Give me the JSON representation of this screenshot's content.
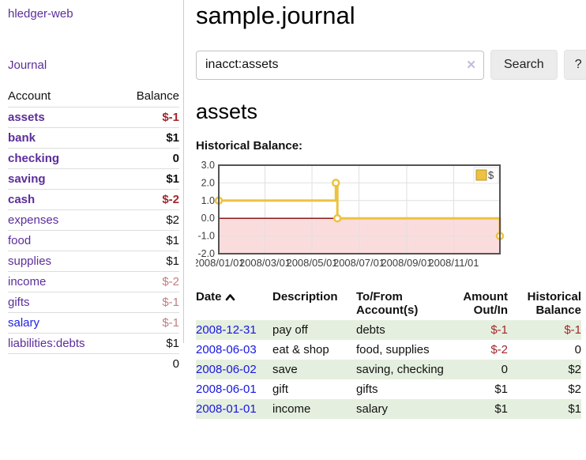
{
  "colors": {
    "link_purple": "#5c2d9b",
    "link_blue": "#1717e0",
    "negative_red": "#a3262c",
    "pale_negative": "#c17d7e",
    "stripe_green": "#e5efdf",
    "chart_line": "#edc240",
    "chart_negative_fill": "#fbdcdc",
    "chart_zero_line": "#8b1a1a"
  },
  "sidebar": {
    "brand": "hledger-web",
    "journal_link": "Journal",
    "table": {
      "headers": [
        "Account",
        "Balance"
      ],
      "rows": [
        {
          "name": "assets",
          "balance": "$-1",
          "indent": 0,
          "bold": true,
          "balance_style": "neg"
        },
        {
          "name": "bank",
          "balance": "$1",
          "indent": 1,
          "bold": true,
          "balance_style": "pos"
        },
        {
          "name": "checking",
          "balance": "0",
          "indent": 2,
          "bold": true,
          "balance_style": "pos"
        },
        {
          "name": "saving",
          "balance": "$1",
          "indent": 2,
          "bold": true,
          "balance_style": "pos"
        },
        {
          "name": "cash",
          "balance": "$-2",
          "indent": 1,
          "bold": true,
          "balance_style": "neg"
        },
        {
          "name": "expenses",
          "balance": "$2",
          "indent": 0,
          "bold": false,
          "balance_style": "pos"
        },
        {
          "name": "food",
          "balance": "$1",
          "indent": 1,
          "bold": false,
          "balance_style": "pos"
        },
        {
          "name": "supplies",
          "balance": "$1",
          "indent": 1,
          "bold": false,
          "balance_style": "pos"
        },
        {
          "name": "income",
          "balance": "$-2",
          "indent": 0,
          "bold": false,
          "balance_style": "pale-neg"
        },
        {
          "name": "gifts",
          "balance": "$-1",
          "indent": 1,
          "bold": false,
          "balance_style": "pale-neg"
        },
        {
          "name": "salary",
          "balance": "$-1",
          "indent": 1,
          "bold": false,
          "balance_style": "pale-neg",
          "link_style": "blue"
        },
        {
          "name": "liabilities:debts",
          "balance": "$1",
          "indent": 0,
          "bold": false,
          "balance_style": "pos"
        }
      ],
      "total": "0"
    }
  },
  "header": {
    "title": "sample.journal"
  },
  "search": {
    "query": "inacct:assets",
    "clear_icon": "✕",
    "button_label": "Search",
    "help_label": "?"
  },
  "account_page": {
    "heading": "assets",
    "chart_label": "Historical Balance:"
  },
  "chart_data": {
    "type": "line",
    "step": true,
    "title": "Historical Balance",
    "legend": [
      {
        "label": "$",
        "color": "#edc240"
      }
    ],
    "legend_position": "top-right",
    "x_range": [
      "2008-01-01",
      "2008-12-31"
    ],
    "ylim": [
      -2.0,
      3.0
    ],
    "y_ticks": [
      3.0,
      2.0,
      1.0,
      0.0,
      -1.0,
      -2.0
    ],
    "x_ticks": [
      "2008/01/01",
      "2008/03/01",
      "2008/05/01",
      "2008/07/01",
      "2008/09/01",
      "2008/11/01"
    ],
    "series": [
      {
        "name": "$",
        "points": [
          {
            "date": "2008-01-01",
            "value": 1
          },
          {
            "date": "2008-06-01",
            "value": 2
          },
          {
            "date": "2008-06-03",
            "value": 0
          },
          {
            "date": "2008-12-31",
            "value": -1
          }
        ]
      }
    ],
    "grid": true,
    "negative_area_shaded": true
  },
  "register": {
    "headers": [
      {
        "label": "Date",
        "align": "left",
        "sorted": "asc"
      },
      {
        "label": "Description",
        "align": "left"
      },
      {
        "label": "To/From Account(s)",
        "align": "left"
      },
      {
        "label": "Amount Out/In",
        "align": "right"
      },
      {
        "label": "Historical Balance",
        "align": "right"
      }
    ],
    "rows": [
      {
        "date": "2008-12-31",
        "description": "pay off",
        "accounts": "debts",
        "amount": "$-1",
        "amount_negative": true,
        "balance": "$-1",
        "balance_negative": true
      },
      {
        "date": "2008-06-03",
        "description": "eat & shop",
        "accounts": "food, supplies",
        "amount": "$-2",
        "amount_negative": true,
        "balance": "0",
        "balance_negative": false
      },
      {
        "date": "2008-06-02",
        "description": "save",
        "accounts": "saving, checking",
        "amount": "0",
        "amount_negative": false,
        "balance": "$2",
        "balance_negative": false
      },
      {
        "date": "2008-06-01",
        "description": "gift",
        "accounts": "gifts",
        "amount": "$1",
        "amount_negative": false,
        "balance": "$2",
        "balance_negative": false
      },
      {
        "date": "2008-01-01",
        "description": "income",
        "accounts": "salary",
        "amount": "$1",
        "amount_negative": false,
        "balance": "$1",
        "balance_negative": false
      }
    ]
  }
}
